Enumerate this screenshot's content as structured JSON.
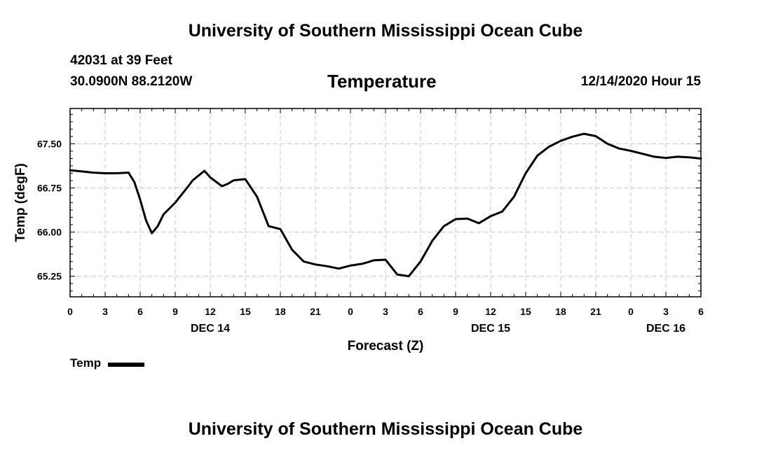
{
  "header": {
    "title": "University of Southern Mississippi Ocean Cube",
    "station": "42031 at 39 Feet",
    "coords": "30.0900N 88.2120W",
    "date_hour": "12/14/2020 Hour 15"
  },
  "footer": {
    "title": "University of Southern Mississippi Ocean Cube"
  },
  "chart_data": {
    "type": "line",
    "title": "Temperature",
    "xlabel": "Forecast (Z)",
    "ylabel": "Temp (degF)",
    "xlim": [
      0,
      54
    ],
    "ylim": [
      64.9,
      68.1
    ],
    "x_ticks": [
      0,
      3,
      6,
      9,
      12,
      15,
      18,
      21,
      24,
      27,
      30,
      33,
      36,
      39,
      42,
      45,
      48,
      51,
      54
    ],
    "x_tick_labels": [
      "0",
      "3",
      "6",
      "9",
      "12",
      "15",
      "18",
      "21",
      "0",
      "3",
      "6",
      "9",
      "12",
      "15",
      "18",
      "21",
      "0",
      "3",
      "6"
    ],
    "day_labels": [
      {
        "x": 12,
        "label": "DEC 14"
      },
      {
        "x": 36,
        "label": "DEC 15"
      },
      {
        "x": 51,
        "label": "DEC 16"
      }
    ],
    "y_ticks": [
      65.25,
      66.0,
      66.75,
      67.5
    ],
    "y_tick_labels": [
      "65.25",
      "66.00",
      "66.75",
      "67.50"
    ],
    "grid": true,
    "legend_position": "bottom-left",
    "series": [
      {
        "name": "Temp",
        "x": [
          0,
          1,
          2,
          3,
          4,
          5,
          5.5,
          6,
          6.5,
          7,
          7.5,
          8,
          9,
          10,
          10.5,
          11,
          11.5,
          12,
          13,
          13.5,
          14,
          15,
          16,
          17,
          18,
          19,
          20,
          21,
          22,
          23,
          24,
          25,
          26,
          27,
          28,
          29,
          30,
          31,
          32,
          33,
          34,
          35,
          36,
          37,
          38,
          39,
          40,
          41,
          42,
          43,
          44,
          45,
          46,
          47,
          48,
          49,
          50,
          51,
          52,
          53,
          54
        ],
        "values": [
          67.05,
          67.03,
          67.01,
          67.0,
          67.0,
          67.01,
          66.85,
          66.55,
          66.2,
          65.98,
          66.1,
          66.3,
          66.5,
          66.75,
          66.88,
          66.96,
          67.04,
          66.93,
          66.78,
          66.82,
          66.88,
          66.9,
          66.6,
          66.1,
          66.05,
          65.7,
          65.5,
          65.45,
          65.42,
          65.38,
          65.43,
          65.46,
          65.52,
          65.53,
          65.28,
          65.25,
          65.5,
          65.85,
          66.1,
          66.22,
          66.23,
          66.15,
          66.27,
          66.35,
          66.6,
          67.0,
          67.3,
          67.45,
          67.55,
          67.62,
          67.67,
          67.63,
          67.5,
          67.42,
          67.38,
          67.33,
          67.28,
          67.26,
          67.28,
          67.27,
          67.25
        ]
      }
    ]
  }
}
